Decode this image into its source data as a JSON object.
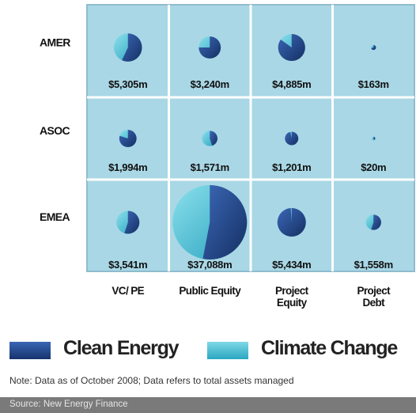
{
  "chart_data": {
    "type": "bubble-matrix",
    "rows": [
      "AMER",
      "ASOC",
      "EMEA"
    ],
    "columns": [
      "VC/ PE",
      "Public Equity",
      "Project\nEquity",
      "Project\nDebt"
    ],
    "cells": [
      [
        {
          "label": "$5,305m",
          "value": 5305,
          "clean_energy_share": 0.57
        },
        {
          "label": "$3,240m",
          "value": 3240,
          "clean_energy_share": 0.75
        },
        {
          "label": "$4,885m",
          "value": 4885,
          "clean_energy_share": 0.85
        },
        {
          "label": "$163m",
          "value": 163,
          "clean_energy_share": 0.7
        }
      ],
      [
        {
          "label": "$1,994m",
          "value": 1994,
          "clean_energy_share": 0.8
        },
        {
          "label": "$1,571m",
          "value": 1571,
          "clean_energy_share": 0.45
        },
        {
          "label": "$1,201m",
          "value": 1201,
          "clean_energy_share": 0.97
        },
        {
          "label": "$20m",
          "value": 20,
          "clean_energy_share": 0.4
        }
      ],
      [
        {
          "label": "$3,541m",
          "value": 3541,
          "clean_energy_share": 0.55
        },
        {
          "label": "$37,088m",
          "value": 37088,
          "clean_energy_share": 0.53
        },
        {
          "label": "$5,434m",
          "value": 5434,
          "clean_energy_share": 0.99
        },
        {
          "label": "$1,558m",
          "value": 1558,
          "clean_energy_share": 0.55
        }
      ]
    ],
    "legend": [
      {
        "name": "Clean Energy",
        "color": "#1e3f80"
      },
      {
        "name": "Climate Change",
        "color": "#3fb6cd"
      }
    ]
  },
  "colors": {
    "cell_fill": "#a9d7e6",
    "grid_line": "#8fbccd",
    "clean_energy": "#1e3f80",
    "climate_change": "#3fb6cd"
  },
  "note": "Note: Data as of October 2008; Data refers to total assets managed",
  "source": "Source: New Energy Finance"
}
